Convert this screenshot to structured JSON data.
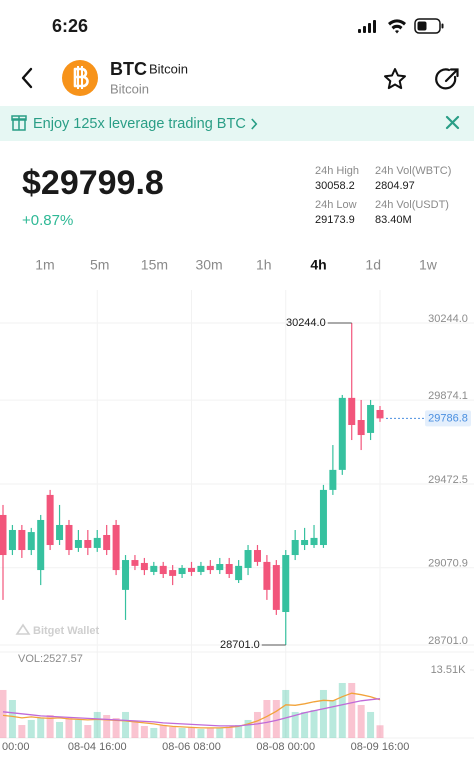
{
  "status_bar": {
    "time": "6:26"
  },
  "header": {
    "symbol": "BTC",
    "name": "Bitcoin",
    "subtitle": "Bitcoin"
  },
  "banner": {
    "text": "Enjoy 125x leverage trading BTC"
  },
  "price": {
    "last": "$29799.8",
    "change": "+0.87%"
  },
  "stats": [
    {
      "label": "24h High",
      "value": 30058.2
    },
    {
      "label": "24h Vol(WBTC)",
      "value": 2804.97
    },
    {
      "label": "24h Low",
      "value": 29173.9
    },
    {
      "label": "24h Vol(USDT)",
      "value": "83.40M"
    }
  ],
  "intervals": [
    "1m",
    "5m",
    "15m",
    "30m",
    "1h",
    "4h",
    "1d",
    "1w"
  ],
  "chart_data": {
    "type": "candlestick",
    "watermark": "Bitget Wallet",
    "categories": [
      "00:00",
      null,
      null,
      null,
      null,
      null,
      null,
      null,
      null,
      null,
      "08-04 16:00",
      null,
      null,
      null,
      null,
      null,
      null,
      null,
      null,
      null,
      "08-06 08:00",
      null,
      null,
      null,
      null,
      null,
      null,
      null,
      null,
      null,
      "08-08 00:00",
      null,
      null,
      null,
      null,
      null,
      null,
      null,
      null,
      null,
      "08-09 16:00"
    ],
    "open": [
      29324,
      29156,
      29252,
      29156,
      29060,
      29420,
      29204,
      29276,
      29166,
      29204,
      29166,
      29228,
      29276,
      28965,
      29108,
      29094,
      29051,
      29080,
      29060,
      29041,
      29070,
      29051,
      29080,
      29060,
      29089,
      29012,
      29070,
      29156,
      29099,
      29084,
      28859,
      29132,
      29180,
      29180,
      29180,
      29444,
      29540,
      29885,
      29779,
      29717,
      29827
    ],
    "high": [
      29372,
      29276,
      29276,
      29262,
      29324,
      29444,
      29372,
      29300,
      29252,
      29252,
      29252,
      29276,
      29300,
      29132,
      29132,
      29118,
      29099,
      29099,
      29084,
      29084,
      29099,
      29099,
      29108,
      29118,
      29118,
      29108,
      29180,
      29180,
      29132,
      29108,
      29156,
      29252,
      29262,
      29276,
      29468,
      29659,
      29899,
      30244,
      29875,
      29875,
      29846
    ],
    "low": [
      28917,
      29132,
      29118,
      29132,
      28988,
      29156,
      29180,
      29132,
      29147,
      29132,
      29147,
      29132,
      29036,
      28821,
      29060,
      29036,
      29036,
      29022,
      28988,
      29022,
      29032,
      29036,
      29041,
      29041,
      29022,
      28998,
      29036,
      29080,
      28917,
      28845,
      28701,
      29108,
      29156,
      29166,
      29166,
      29420,
      29516,
      29683,
      29635,
      29683,
      29770
    ],
    "close": [
      29132,
      29252,
      29156,
      29242,
      29300,
      29180,
      29276,
      29156,
      29204,
      29166,
      29214,
      29156,
      29060,
      29108,
      29080,
      29060,
      29080,
      29041,
      29032,
      29070,
      29051,
      29080,
      29060,
      29089,
      29041,
      29080,
      29156,
      29099,
      28965,
      28869,
      29132,
      29204,
      29204,
      29214,
      29444,
      29540,
      29885,
      29755,
      29707,
      29851,
      29786.8
    ],
    "up_color": "#36c19f",
    "down_color": "#f2557b",
    "ylim": [
      28653,
      30354
    ],
    "yticks": [
      {
        "value": 30244,
        "label": "30244.0"
      },
      29874.1,
      29472.5,
      29070.9,
      {
        "value": 28701,
        "label": "28701.0"
      }
    ],
    "grid": true,
    "extremes": [
      {
        "value": 30244,
        "label": "30244.0"
      },
      {
        "value": 28701,
        "label": "28701.0"
      }
    ],
    "last_price": 29786.8,
    "volume": {
      "label": "VOL:2527.57",
      "values": [
        9540,
        7550,
        2580,
        3580,
        3970,
        4570,
        3180,
        3970,
        3580,
        2580,
        5170,
        4570,
        3970,
        5170,
        3180,
        2380,
        1990,
        2580,
        2190,
        1990,
        2190,
        1790,
        1990,
        1990,
        2190,
        2580,
        3580,
        5170,
        7550,
        7550,
        9540,
        5170,
        5170,
        5560,
        9540,
        7550,
        10930,
        10930,
        6560,
        5170,
        2527.57
      ],
      "ylim": [
        0,
        13510
      ],
      "yticks": [
        {
          "value": 13510,
          "label": "13.51K"
        }
      ],
      "ma_lines": [
        {
          "color": "#f2a33a",
          "values": [
            4500,
            4300,
            4000,
            4200,
            4000,
            3900,
            4000,
            3800,
            3700,
            3600,
            3700,
            3600,
            3500,
            3400,
            3200,
            3000,
            2800,
            2500,
            2300,
            2200,
            2100,
            2000,
            2000,
            2000,
            2100,
            2300,
            2800,
            3400,
            4300,
            5300,
            6600,
            6500,
            6800,
            7200,
            7500,
            7400,
            8200,
            8900,
            8600,
            8200,
            7600
          ]
        },
        {
          "color": "#c06ad8",
          "values": [
            5200,
            5000,
            4800,
            4600,
            4400,
            4300,
            4200,
            4100,
            4000,
            3900,
            3800,
            3700,
            3600,
            3500,
            3400,
            3300,
            3200,
            3000,
            2900,
            2800,
            2700,
            2600,
            2500,
            2400,
            2400,
            2400,
            2600,
            2800,
            3100,
            3500,
            4000,
            4500,
            5000,
            5400,
            5800,
            6200,
            6600,
            7000,
            7400,
            7600,
            7800
          ]
        }
      ]
    }
  }
}
